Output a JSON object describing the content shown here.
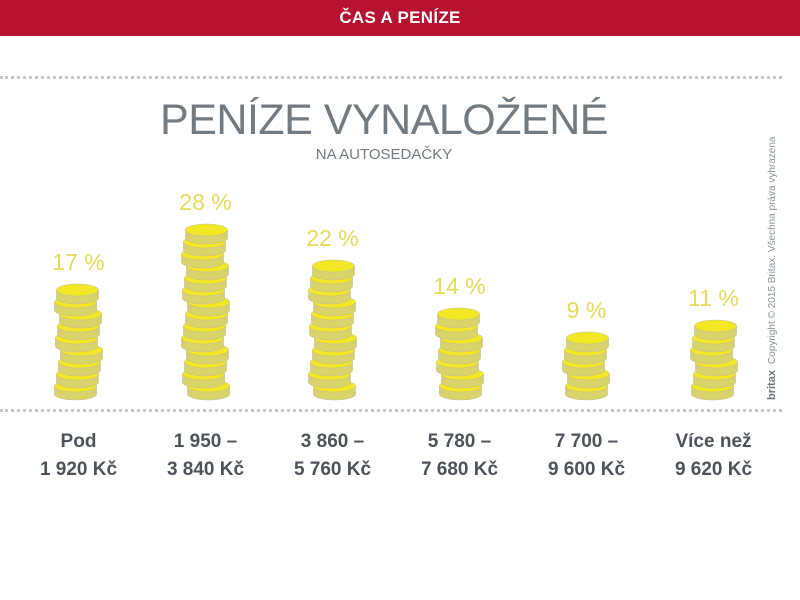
{
  "header": {
    "banner": "ČAS A PENÍZE"
  },
  "chart_data": {
    "type": "bar",
    "title": "PENÍZE VYNALOŽENÉ",
    "subtitle": "NA AUTOSEDAČKY",
    "categories": [
      [
        "Pod",
        "1 920 Kč"
      ],
      [
        "1 950 –",
        "3 840 Kč"
      ],
      [
        "3 860 –",
        "5 760 Kč"
      ],
      [
        "5 780 –",
        "7 680 Kč"
      ],
      [
        "7 700 –",
        "9 600 Kč"
      ],
      [
        "Více než",
        "9 620 Kč"
      ]
    ],
    "values": [
      17,
      28,
      22,
      14,
      9,
      11
    ],
    "value_labels": [
      "17 %",
      "28 %",
      "22 %",
      "14 %",
      "9 %",
      "11 %"
    ],
    "unit": "%",
    "grid": false
  },
  "footer": {
    "brand": "britax",
    "copyright": "Copyright © 2015 Britax. Všechna práva vyhrazena"
  },
  "colors": {
    "banner": "#b5132f",
    "coin": "#f2e826",
    "coin_shade": "#d9d36b",
    "coin_edge": "#c7c08a",
    "value_label": "#e3dc5a",
    "title": "#737a80",
    "category": "#4d5359"
  }
}
